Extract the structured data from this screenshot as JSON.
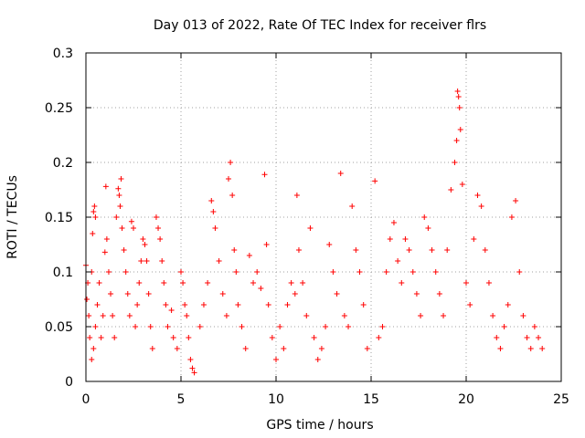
{
  "chart_data": {
    "type": "scatter",
    "title": "Day 013 of 2022, Rate Of TEC Index for receiver flrs",
    "xlabel": "GPS time / hours",
    "ylabel": "ROTI / TECUs",
    "xlim": [
      0,
      25
    ],
    "ylim": [
      0,
      0.3
    ],
    "x_ticks": [
      0,
      5,
      10,
      15,
      20,
      25
    ],
    "x_tick_labels": [
      "0",
      "5",
      "10",
      "15",
      "20",
      "25"
    ],
    "y_ticks": [
      0,
      0.05,
      0.1,
      0.15,
      0.2,
      0.25,
      0.3
    ],
    "y_tick_labels": [
      "0",
      "0.05",
      "0.1",
      "0.15",
      "0.2",
      "0.25",
      "0.3"
    ],
    "grid": true,
    "marker": "+",
    "series_color": "#ff0000",
    "series": [
      {
        "name": "ROTI",
        "points": [
          [
            0.0,
            0.106
          ],
          [
            0.05,
            0.075
          ],
          [
            0.1,
            0.09
          ],
          [
            0.15,
            0.06
          ],
          [
            0.2,
            0.04
          ],
          [
            0.3,
            0.1
          ],
          [
            0.35,
            0.135
          ],
          [
            0.4,
            0.155
          ],
          [
            0.45,
            0.16
          ],
          [
            0.5,
            0.15
          ],
          [
            0.3,
            0.02
          ],
          [
            0.4,
            0.03
          ],
          [
            0.5,
            0.05
          ],
          [
            0.6,
            0.07
          ],
          [
            0.7,
            0.09
          ],
          [
            0.8,
            0.04
          ],
          [
            0.9,
            0.06
          ],
          [
            1.0,
            0.118
          ],
          [
            1.05,
            0.178
          ],
          [
            1.1,
            0.13
          ],
          [
            1.2,
            0.1
          ],
          [
            1.3,
            0.08
          ],
          [
            1.4,
            0.06
          ],
          [
            1.5,
            0.04
          ],
          [
            1.6,
            0.15
          ],
          [
            1.7,
            0.176
          ],
          [
            1.75,
            0.17
          ],
          [
            1.8,
            0.16
          ],
          [
            1.85,
            0.185
          ],
          [
            1.9,
            0.14
          ],
          [
            2.0,
            0.12
          ],
          [
            2.1,
            0.1
          ],
          [
            2.2,
            0.08
          ],
          [
            2.3,
            0.06
          ],
          [
            2.4,
            0.146
          ],
          [
            2.5,
            0.14
          ],
          [
            2.6,
            0.05
          ],
          [
            2.7,
            0.07
          ],
          [
            2.8,
            0.09
          ],
          [
            2.9,
            0.11
          ],
          [
            3.0,
            0.13
          ],
          [
            3.1,
            0.125
          ],
          [
            3.2,
            0.11
          ],
          [
            3.3,
            0.08
          ],
          [
            3.4,
            0.05
          ],
          [
            3.5,
            0.03
          ],
          [
            3.7,
            0.15
          ],
          [
            3.8,
            0.14
          ],
          [
            3.9,
            0.13
          ],
          [
            4.0,
            0.11
          ],
          [
            4.1,
            0.09
          ],
          [
            4.2,
            0.07
          ],
          [
            4.3,
            0.05
          ],
          [
            4.5,
            0.065
          ],
          [
            4.6,
            0.04
          ],
          [
            4.8,
            0.03
          ],
          [
            5.0,
            0.1
          ],
          [
            5.1,
            0.09
          ],
          [
            5.2,
            0.07
          ],
          [
            5.3,
            0.06
          ],
          [
            5.4,
            0.04
          ],
          [
            5.5,
            0.02
          ],
          [
            5.6,
            0.012
          ],
          [
            5.7,
            0.008
          ],
          [
            6.0,
            0.05
          ],
          [
            6.2,
            0.07
          ],
          [
            6.4,
            0.09
          ],
          [
            6.6,
            0.165
          ],
          [
            6.7,
            0.155
          ],
          [
            6.8,
            0.14
          ],
          [
            7.0,
            0.11
          ],
          [
            7.2,
            0.08
          ],
          [
            7.4,
            0.06
          ],
          [
            7.5,
            0.185
          ],
          [
            7.6,
            0.2
          ],
          [
            7.7,
            0.17
          ],
          [
            7.8,
            0.12
          ],
          [
            7.9,
            0.1
          ],
          [
            8.0,
            0.07
          ],
          [
            8.2,
            0.05
          ],
          [
            8.4,
            0.03
          ],
          [
            8.6,
            0.115
          ],
          [
            8.8,
            0.09
          ],
          [
            9.0,
            0.1
          ],
          [
            9.2,
            0.085
          ],
          [
            9.4,
            0.189
          ],
          [
            9.5,
            0.125
          ],
          [
            9.6,
            0.07
          ],
          [
            9.8,
            0.04
          ],
          [
            10.0,
            0.02
          ],
          [
            10.2,
            0.05
          ],
          [
            10.4,
            0.03
          ],
          [
            10.6,
            0.07
          ],
          [
            10.8,
            0.09
          ],
          [
            11.0,
            0.08
          ],
          [
            11.1,
            0.17
          ],
          [
            11.2,
            0.12
          ],
          [
            11.4,
            0.09
          ],
          [
            11.6,
            0.06
          ],
          [
            11.8,
            0.14
          ],
          [
            12.0,
            0.04
          ],
          [
            12.2,
            0.02
          ],
          [
            12.4,
            0.03
          ],
          [
            12.6,
            0.05
          ],
          [
            12.8,
            0.125
          ],
          [
            13.0,
            0.1
          ],
          [
            13.2,
            0.08
          ],
          [
            13.4,
            0.19
          ],
          [
            13.6,
            0.06
          ],
          [
            13.8,
            0.05
          ],
          [
            14.0,
            0.16
          ],
          [
            14.2,
            0.12
          ],
          [
            14.4,
            0.1
          ],
          [
            14.6,
            0.07
          ],
          [
            14.8,
            0.03
          ],
          [
            15.2,
            0.183
          ],
          [
            15.4,
            0.04
          ],
          [
            15.6,
            0.05
          ],
          [
            15.8,
            0.1
          ],
          [
            16.0,
            0.13
          ],
          [
            16.2,
            0.145
          ],
          [
            16.4,
            0.11
          ],
          [
            16.6,
            0.09
          ],
          [
            16.8,
            0.13
          ],
          [
            17.0,
            0.12
          ],
          [
            17.2,
            0.1
          ],
          [
            17.4,
            0.08
          ],
          [
            17.6,
            0.06
          ],
          [
            17.8,
            0.15
          ],
          [
            18.0,
            0.14
          ],
          [
            18.2,
            0.12
          ],
          [
            18.4,
            0.1
          ],
          [
            18.6,
            0.08
          ],
          [
            18.8,
            0.06
          ],
          [
            19.0,
            0.12
          ],
          [
            19.2,
            0.175
          ],
          [
            19.4,
            0.2
          ],
          [
            19.5,
            0.22
          ],
          [
            19.55,
            0.265
          ],
          [
            19.6,
            0.26
          ],
          [
            19.65,
            0.25
          ],
          [
            19.7,
            0.23
          ],
          [
            19.8,
            0.18
          ],
          [
            20.0,
            0.09
          ],
          [
            20.2,
            0.07
          ],
          [
            20.4,
            0.13
          ],
          [
            20.6,
            0.17
          ],
          [
            20.8,
            0.16
          ],
          [
            21.0,
            0.12
          ],
          [
            21.2,
            0.09
          ],
          [
            21.4,
            0.06
          ],
          [
            21.6,
            0.04
          ],
          [
            21.8,
            0.03
          ],
          [
            22.0,
            0.05
          ],
          [
            22.2,
            0.07
          ],
          [
            22.4,
            0.15
          ],
          [
            22.6,
            0.165
          ],
          [
            22.8,
            0.1
          ],
          [
            23.0,
            0.06
          ],
          [
            23.2,
            0.04
          ],
          [
            23.4,
            0.03
          ],
          [
            23.6,
            0.05
          ],
          [
            23.8,
            0.04
          ],
          [
            24.0,
            0.03
          ]
        ]
      }
    ]
  }
}
